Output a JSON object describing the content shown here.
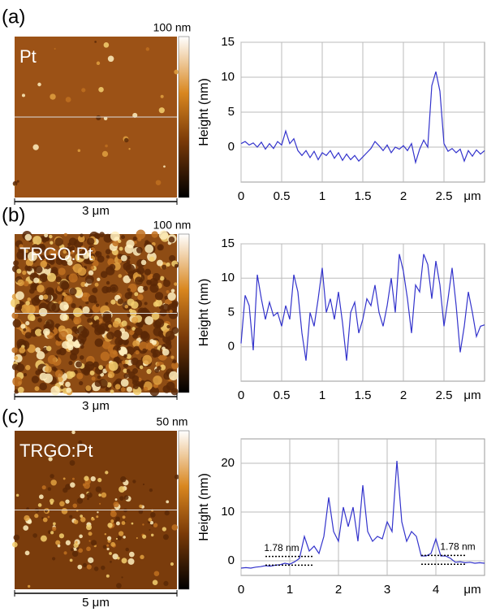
{
  "chart_data": [
    {
      "type": "line",
      "panel_label": "(a)",
      "image_label": "Pt",
      "colorbar_label": "100 nm",
      "scale_label": "3 μm",
      "ylabel": "Height (nm)",
      "xlabel": "μm",
      "xlim": [
        0,
        3
      ],
      "ylim": [
        -5,
        15
      ],
      "xticks": [
        0,
        0.5,
        1.0,
        1.5,
        2.0,
        2.5
      ],
      "yticks": [
        0,
        5,
        10,
        15
      ],
      "grid": true,
      "color": "#3333cc",
      "x": [
        0,
        0.05,
        0.1,
        0.15,
        0.2,
        0.25,
        0.3,
        0.35,
        0.4,
        0.45,
        0.5,
        0.55,
        0.6,
        0.65,
        0.7,
        0.75,
        0.8,
        0.85,
        0.9,
        0.95,
        1.0,
        1.05,
        1.1,
        1.15,
        1.2,
        1.25,
        1.3,
        1.35,
        1.4,
        1.45,
        1.5,
        1.55,
        1.6,
        1.65,
        1.7,
        1.75,
        1.8,
        1.85,
        1.9,
        1.95,
        2.0,
        2.05,
        2.1,
        2.15,
        2.2,
        2.25,
        2.3,
        2.35,
        2.4,
        2.45,
        2.5,
        2.55,
        2.6,
        2.65,
        2.7,
        2.75,
        2.8,
        2.85,
        2.9,
        2.95,
        3.0
      ],
      "values": [
        0.5,
        0.8,
        0.3,
        0.6,
        0,
        0.7,
        -0.3,
        0.5,
        -0.2,
        0.8,
        0.3,
        2.3,
        0.5,
        1.2,
        -0.5,
        -1.2,
        -0.5,
        -1.5,
        -0.6,
        -1.8,
        -0.8,
        -1.2,
        -0.5,
        -1.6,
        -0.8,
        -1.9,
        -1,
        -1.8,
        -1.2,
        -2,
        -1.4,
        -0.8,
        -0.2,
        0.8,
        0.2,
        -0.5,
        0.3,
        -0.8,
        0,
        -0.3,
        0.2,
        -0.5,
        0.5,
        -2.2,
        -0.3,
        1,
        0,
        8.8,
        10.8,
        8,
        0.5,
        -0.6,
        -0.2,
        -0.8,
        -0.3,
        -2,
        -0.5,
        -1.3,
        -0.4,
        -1,
        -0.5
      ]
    },
    {
      "type": "line",
      "panel_label": "(b)",
      "image_label": "TRGO:Pt",
      "colorbar_label": "100 nm",
      "scale_label": "3 μm",
      "ylabel": "Height (nm)",
      "xlabel": "μm",
      "xlim": [
        0,
        3
      ],
      "ylim": [
        -5,
        15
      ],
      "xticks": [
        0,
        0.5,
        1.0,
        1.5,
        2.0,
        2.5
      ],
      "yticks": [
        0,
        5,
        10,
        15
      ],
      "grid": true,
      "color": "#3333cc",
      "x": [
        0,
        0.05,
        0.1,
        0.15,
        0.2,
        0.25,
        0.3,
        0.35,
        0.4,
        0.45,
        0.5,
        0.55,
        0.6,
        0.65,
        0.7,
        0.75,
        0.8,
        0.85,
        0.9,
        0.95,
        1.0,
        1.05,
        1.1,
        1.15,
        1.2,
        1.25,
        1.3,
        1.35,
        1.4,
        1.45,
        1.5,
        1.55,
        1.6,
        1.65,
        1.7,
        1.75,
        1.8,
        1.85,
        1.9,
        1.95,
        2.0,
        2.05,
        2.1,
        2.15,
        2.2,
        2.25,
        2.3,
        2.35,
        2.4,
        2.45,
        2.5,
        2.55,
        2.6,
        2.65,
        2.7,
        2.75,
        2.8,
        2.85,
        2.9,
        2.95,
        3.0
      ],
      "values": [
        0.5,
        7.5,
        6,
        -0.5,
        10.5,
        7,
        4,
        6.5,
        4.5,
        5,
        3,
        6,
        4,
        10.5,
        8,
        2,
        -2,
        5,
        3,
        7,
        11.5,
        5,
        7,
        4,
        8,
        3.5,
        -2,
        5,
        6.5,
        2,
        4,
        7,
        6,
        9,
        5,
        3,
        6,
        10,
        5,
        13.5,
        11,
        7,
        2,
        9,
        8,
        13.5,
        12,
        7,
        12.5,
        9,
        3,
        7,
        11.5,
        6,
        -0.8,
        3,
        8,
        5,
        1.5,
        3,
        3.2
      ]
    },
    {
      "type": "line",
      "panel_label": "(c)",
      "image_label": "TRGO:Pt",
      "colorbar_label": "50 nm",
      "scale_label": "5 μm",
      "ylabel": "Height (nm)",
      "xlabel": "μm",
      "xlim": [
        0,
        5
      ],
      "ylim": [
        -3,
        25
      ],
      "xticks": [
        0,
        1,
        2,
        3,
        4
      ],
      "yticks": [
        0,
        10,
        20
      ],
      "grid": true,
      "color": "#3333cc",
      "x": [
        0,
        0.1,
        0.2,
        0.3,
        0.4,
        0.5,
        0.6,
        0.7,
        0.8,
        0.9,
        1.0,
        1.1,
        1.2,
        1.3,
        1.4,
        1.5,
        1.6,
        1.7,
        1.8,
        1.9,
        2.0,
        2.1,
        2.2,
        2.3,
        2.4,
        2.5,
        2.6,
        2.7,
        2.8,
        2.9,
        3.0,
        3.1,
        3.2,
        3.3,
        3.4,
        3.5,
        3.6,
        3.7,
        3.8,
        3.9,
        4.0,
        4.1,
        4.2,
        4.3,
        4.4,
        4.5,
        4.6,
        4.7,
        4.8,
        4.9,
        5.0
      ],
      "values": [
        -1.5,
        -1.4,
        -1.5,
        -1.3,
        -1.2,
        -1.0,
        -1.1,
        -0.9,
        -0.8,
        -0.5,
        -0.7,
        -0.2,
        0.5,
        5,
        2,
        3,
        1.5,
        5,
        13,
        6,
        4,
        11,
        7,
        11,
        4,
        15.5,
        6,
        4,
        5,
        4.5,
        8,
        6,
        20.5,
        8,
        4,
        6,
        5,
        1,
        1,
        1.5,
        4.5,
        1,
        1,
        0.5,
        -0.3,
        -0.2,
        -0.4,
        -0.3,
        -0.5,
        -0.4,
        -0.5
      ],
      "annotations": [
        {
          "text": "1.78 nm",
          "x": [
            0.5,
            1.5
          ],
          "y": [
            -0.9,
            0.9
          ]
        },
        {
          "text": "1.78 nm",
          "x": [
            3.7,
            4.6
          ],
          "y": [
            -0.7,
            1.1
          ]
        }
      ]
    }
  ]
}
